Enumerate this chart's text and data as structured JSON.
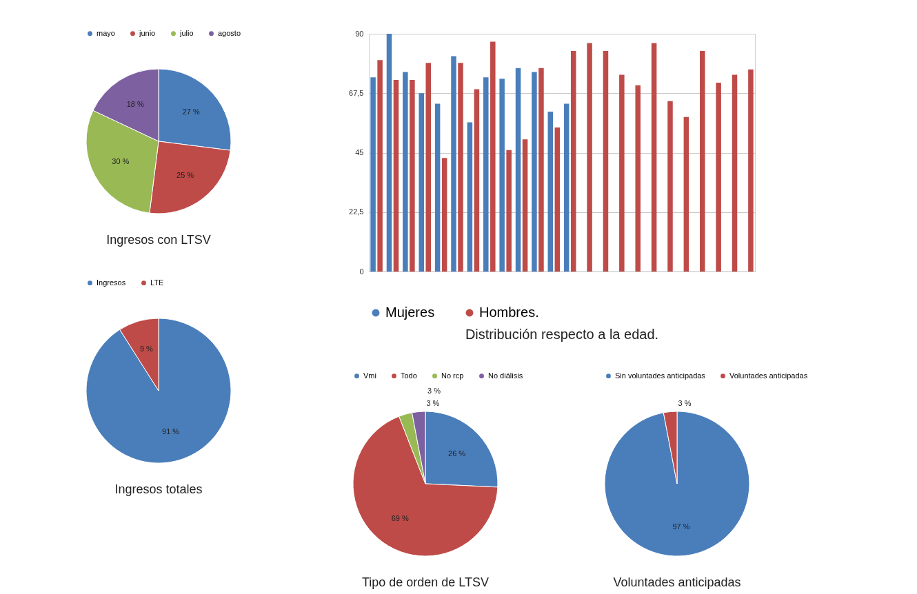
{
  "chart_data": [
    {
      "type": "pie",
      "title": "Ingresos con LTSV",
      "categories": [
        "mayo",
        "junio",
        "julio",
        "agosto"
      ],
      "values": [
        27,
        25,
        30,
        18
      ],
      "value_labels": [
        "27 %",
        "25 %",
        "30 %",
        "18 %"
      ],
      "colors": [
        "#4a7ebb",
        "#be4b48",
        "#98b954",
        "#7d60a0"
      ],
      "legend": "top"
    },
    {
      "type": "bar",
      "title": "Distribución respecto a la edad.",
      "categories": [
        null,
        null,
        null,
        null,
        null,
        null,
        null,
        null,
        null,
        null,
        null,
        null,
        null,
        null,
        null,
        null,
        null,
        null,
        null,
        null,
        null,
        null,
        null,
        null
      ],
      "series": [
        {
          "name": "Mujeres",
          "color": "#4a7ebb",
          "values": [
            73.5,
            90,
            75.5,
            67.5,
            63.5,
            81.5,
            56.5,
            73.5,
            73,
            77,
            75.5,
            60.5,
            63.5,
            null,
            null,
            null,
            null,
            null,
            null,
            null,
            null,
            null,
            null,
            null
          ]
        },
        {
          "name": "Hombres.",
          "color": "#be4b48",
          "values": [
            80,
            72.5,
            72.5,
            79,
            43,
            79,
            69,
            87,
            46,
            50,
            77,
            54.5,
            83.5,
            86.5,
            83.5,
            74.5,
            70.5,
            86.5,
            64.5,
            58.5,
            83.5,
            71.5,
            74.5,
            76.5
          ]
        }
      ],
      "ylim": [
        0,
        90
      ],
      "yticks": [
        0,
        {
          "value": 22.5,
          "label": "22,5"
        },
        45,
        {
          "value": 67.5,
          "label": "67,5"
        },
        90
      ],
      "grid": "y",
      "tick_labels": "y",
      "legend": "bottom"
    },
    {
      "type": "pie",
      "title": "Ingresos totales",
      "categories": [
        "Ingresos",
        "LTE"
      ],
      "values": [
        91,
        9
      ],
      "value_labels": [
        "91 %",
        "9 %"
      ],
      "colors": [
        "#4a7ebb",
        "#be4b48"
      ],
      "legend": "top"
    },
    {
      "type": "pie",
      "title": "Tipo de orden de LTSV",
      "categories": [
        "Vmi",
        "Todo",
        "No rcp",
        "No diálisis"
      ],
      "values": [
        26,
        69,
        3,
        3
      ],
      "value_labels": [
        "26 %",
        "69 %",
        "3 %",
        "3 %"
      ],
      "colors": [
        "#4a7ebb",
        "#be4b48",
        "#98b954",
        "#7d60a0"
      ],
      "legend": "top"
    },
    {
      "type": "pie",
      "title": "Voluntades anticipadas",
      "categories": [
        "Sin voluntades anticipadas",
        "Voluntades anticipadas"
      ],
      "values": [
        97,
        3
      ],
      "value_labels": [
        "97 %",
        "3 %"
      ],
      "colors": [
        "#4a7ebb",
        "#be4b48"
      ],
      "legend": "top"
    }
  ]
}
